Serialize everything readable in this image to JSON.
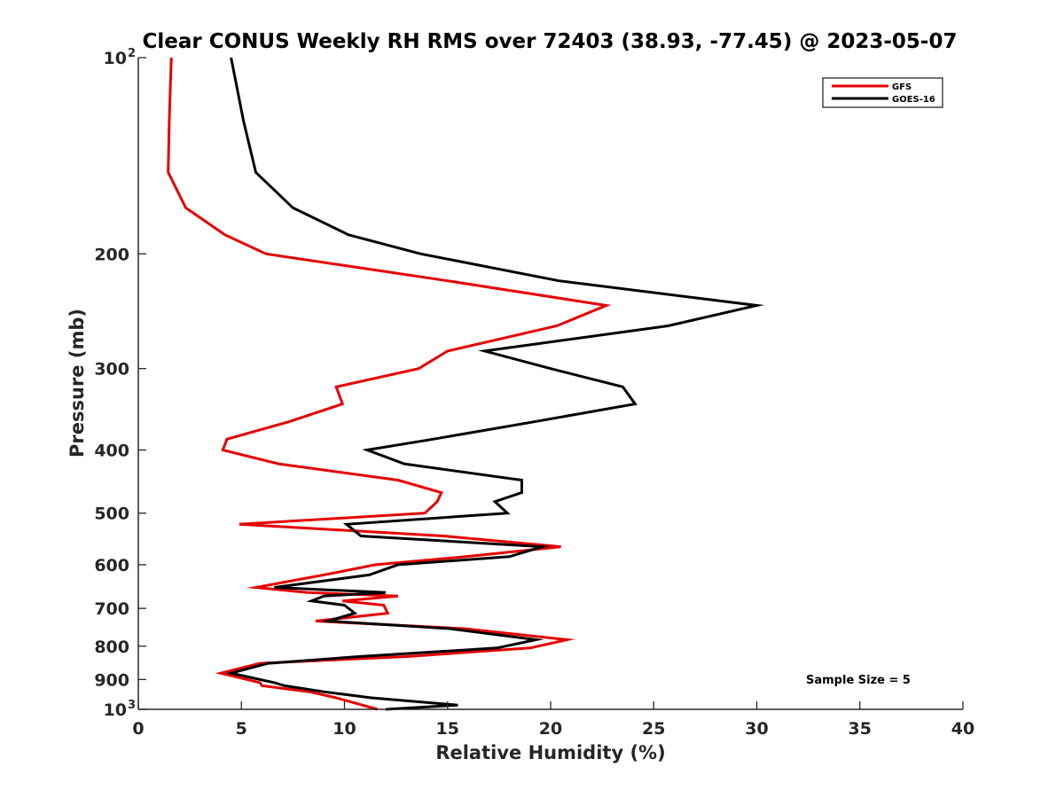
{
  "chart_data": {
    "type": "line",
    "title": "Clear CONUS Weekly RH RMS over 72403 (38.93, -77.45) @ 2023-05-07",
    "xlabel": "Relative Humidity (%)",
    "ylabel": "Pressure (mb)",
    "xlim": [
      0,
      40
    ],
    "ylim": [
      100,
      1000
    ],
    "y_scale": "log",
    "y_reversed": true,
    "grid": false,
    "legend_position": "top-right",
    "annotation": "Sample Size = 5",
    "x_ticks": [
      0,
      5,
      10,
      15,
      20,
      25,
      30,
      35,
      40
    ],
    "x_tick_labels": [
      "0",
      "5",
      "10",
      "15",
      "20",
      "25",
      "30",
      "35",
      "40"
    ],
    "y_ticks": [
      100,
      200,
      300,
      400,
      500,
      600,
      700,
      800,
      900,
      1000
    ],
    "y_tick_labels": [
      {
        "base": "10",
        "exp": "2"
      },
      {
        "base": "200",
        "exp": ""
      },
      {
        "base": "300",
        "exp": ""
      },
      {
        "base": "400",
        "exp": ""
      },
      {
        "base": "500",
        "exp": ""
      },
      {
        "base": "600",
        "exp": ""
      },
      {
        "base": "700",
        "exp": ""
      },
      {
        "base": "800",
        "exp": ""
      },
      {
        "base": "900",
        "exp": ""
      },
      {
        "base": "10",
        "exp": "3"
      }
    ],
    "series": [
      {
        "name": "GFS",
        "color": "#e60000",
        "points": [
          [
            1.6,
            100
          ],
          [
            1.5,
            125
          ],
          [
            1.45,
            150
          ],
          [
            2.3,
            170
          ],
          [
            4.2,
            187
          ],
          [
            6.2,
            200
          ],
          [
            15.0,
            220
          ],
          [
            22.7,
            240
          ],
          [
            20.3,
            258
          ],
          [
            15.0,
            282
          ],
          [
            13.6,
            300
          ],
          [
            9.6,
            320
          ],
          [
            9.9,
            340
          ],
          [
            7.3,
            362
          ],
          [
            4.3,
            385
          ],
          [
            4.1,
            400
          ],
          [
            6.8,
            420
          ],
          [
            12.6,
            445
          ],
          [
            14.7,
            465
          ],
          [
            14.5,
            480
          ],
          [
            13.9,
            500
          ],
          [
            4.9,
            520
          ],
          [
            14.8,
            542
          ],
          [
            20.5,
            563
          ],
          [
            15.9,
            583
          ],
          [
            11.5,
            600
          ],
          [
            9.0,
            622
          ],
          [
            5.7,
            650
          ],
          [
            8.2,
            662
          ],
          [
            12.6,
            670
          ],
          [
            9.9,
            682
          ],
          [
            11.9,
            692
          ],
          [
            12.1,
            712
          ],
          [
            8.6,
            732
          ],
          [
            15.8,
            752
          ],
          [
            20.8,
            782
          ],
          [
            19.0,
            805
          ],
          [
            13.0,
            830
          ],
          [
            5.9,
            850
          ],
          [
            4.0,
            880
          ],
          [
            5.9,
            910
          ],
          [
            6.0,
            920
          ],
          [
            8.3,
            940
          ],
          [
            9.6,
            960
          ],
          [
            11.6,
            1000
          ]
        ]
      },
      {
        "name": "GOES-16",
        "color": "#000000",
        "points": [
          [
            4.5,
            100
          ],
          [
            5.1,
            125
          ],
          [
            5.7,
            150
          ],
          [
            7.5,
            170
          ],
          [
            10.2,
            187
          ],
          [
            13.7,
            200
          ],
          [
            20.4,
            220
          ],
          [
            30.0,
            240
          ],
          [
            25.7,
            258
          ],
          [
            16.8,
            282
          ],
          [
            20.0,
            300
          ],
          [
            23.5,
            320
          ],
          [
            24.1,
            340
          ],
          [
            19.2,
            362
          ],
          [
            14.3,
            385
          ],
          [
            11.1,
            400
          ],
          [
            12.9,
            420
          ],
          [
            18.6,
            445
          ],
          [
            18.6,
            465
          ],
          [
            17.3,
            480
          ],
          [
            17.9,
            500
          ],
          [
            10.1,
            520
          ],
          [
            10.8,
            542
          ],
          [
            19.6,
            563
          ],
          [
            18.0,
            583
          ],
          [
            12.6,
            600
          ],
          [
            11.2,
            622
          ],
          [
            6.6,
            650
          ],
          [
            12.0,
            662
          ],
          [
            9.0,
            670
          ],
          [
            8.4,
            682
          ],
          [
            10.0,
            692
          ],
          [
            10.5,
            712
          ],
          [
            9.2,
            732
          ],
          [
            15.1,
            752
          ],
          [
            19.3,
            782
          ],
          [
            17.4,
            805
          ],
          [
            10.7,
            830
          ],
          [
            6.3,
            850
          ],
          [
            4.5,
            880
          ],
          [
            6.6,
            910
          ],
          [
            7.1,
            920
          ],
          [
            9.0,
            940
          ],
          [
            11.3,
            960
          ],
          [
            15.5,
            985
          ],
          [
            12.0,
            1000
          ]
        ]
      }
    ]
  }
}
